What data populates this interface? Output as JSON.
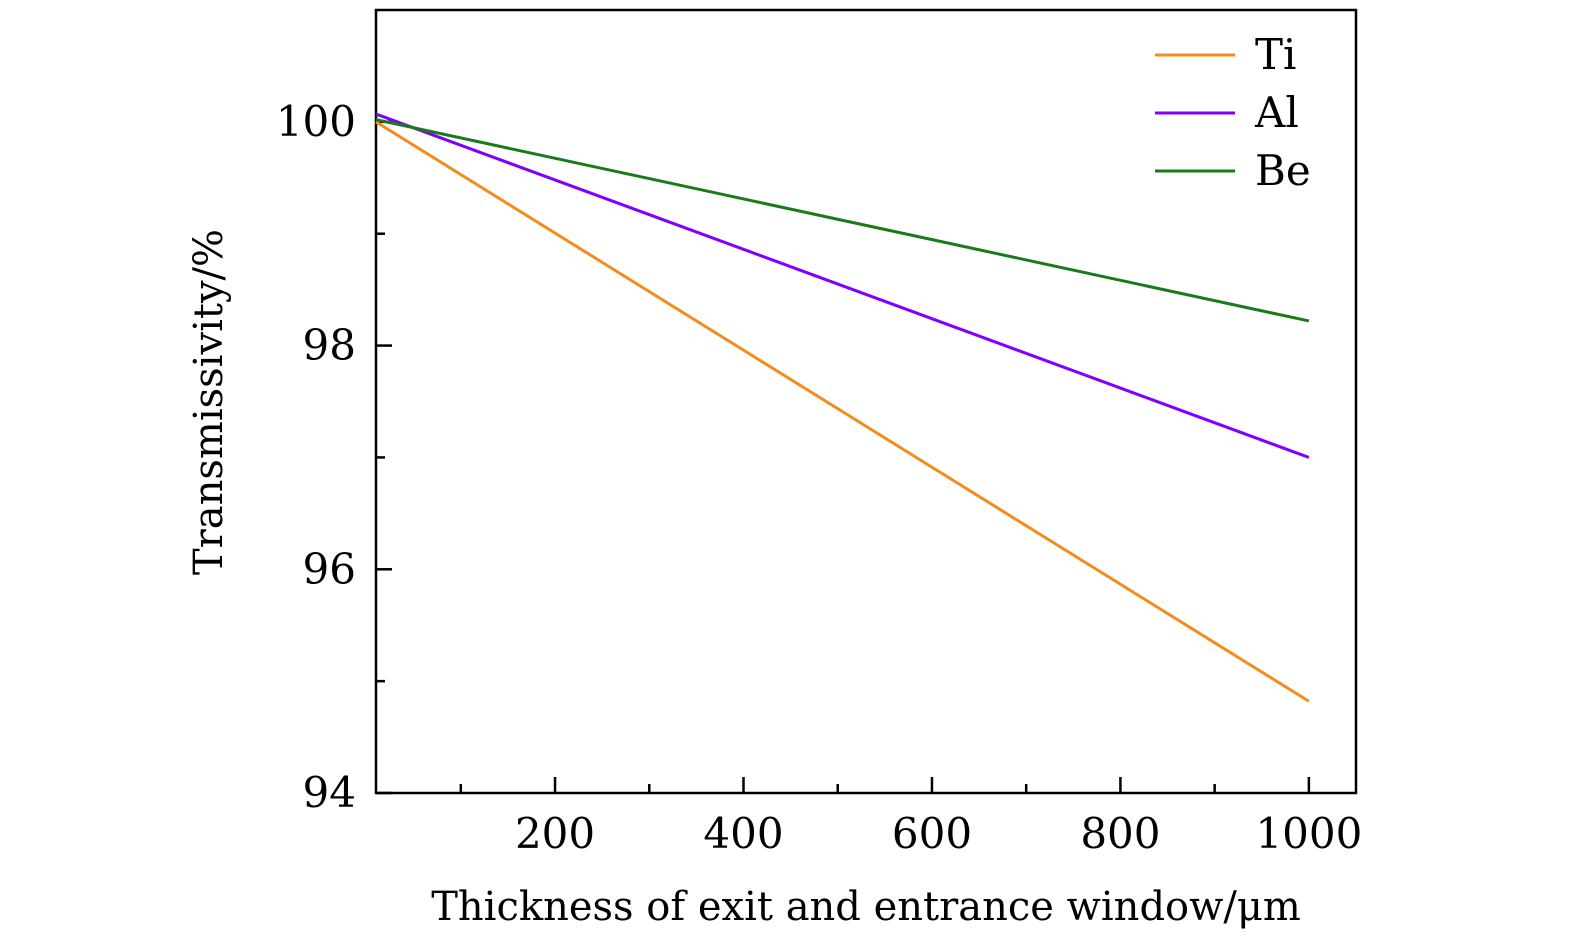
{
  "chart_data": {
    "type": "line",
    "title": "",
    "xlabel": "Thickness of exit and entrance window/μm",
    "ylabel": "Transmissivity/%",
    "xlim": [
      10,
      1050
    ],
    "ylim": [
      94,
      101
    ],
    "xticks": [
      200,
      400,
      600,
      800,
      1000
    ],
    "xticks_minor": [
      100,
      300,
      500,
      700,
      900
    ],
    "yticks": [
      94,
      96,
      98,
      100
    ],
    "yticks_minor": [
      95,
      97,
      99
    ],
    "x_tick_labels": [
      "200",
      "400",
      "600",
      "800",
      "1000"
    ],
    "y_tick_labels": [
      "94",
      "96",
      "98",
      "100"
    ],
    "legend_position": "top-right",
    "series": [
      {
        "name": "Ti",
        "color": "#f28c1c",
        "x": [
          10,
          1000
        ],
        "values": [
          100.0,
          94.82
        ]
      },
      {
        "name": "Al",
        "color": "#7f00ff",
        "x": [
          10,
          1000
        ],
        "values": [
          100.07,
          97.0
        ]
      },
      {
        "name": "Be",
        "color": "#1a7a1a",
        "x": [
          10,
          1000
        ],
        "values": [
          100.02,
          98.22
        ]
      }
    ]
  }
}
